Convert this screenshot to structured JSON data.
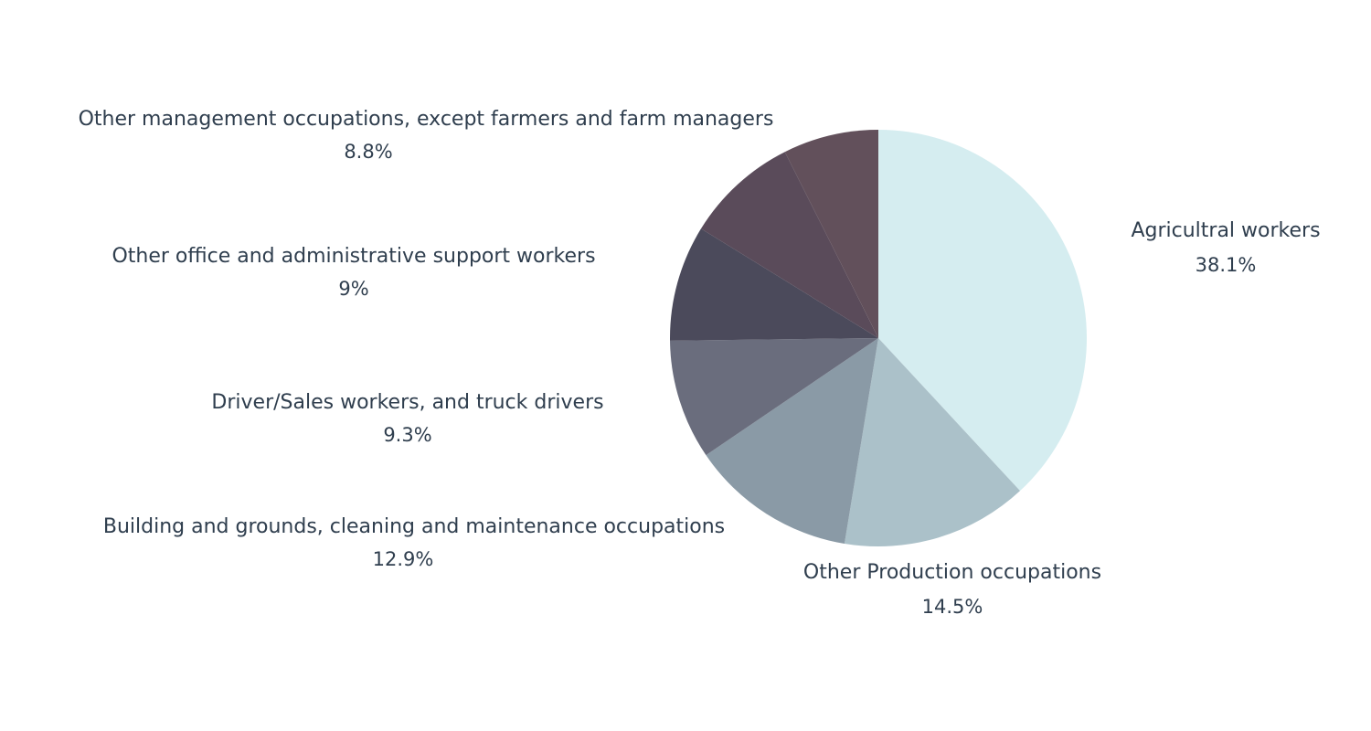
{
  "chart_data": {
    "type": "pie",
    "title": "",
    "start_angle_deg": 0,
    "direction": "clockwise",
    "slices": [
      {
        "label": "Agricultral workers",
        "value": 38.1,
        "value_label": "38.1%",
        "color": "#d5edf0"
      },
      {
        "label": "Other Production occupations",
        "value": 14.5,
        "value_label": "14.5%",
        "color": "#abc1c9"
      },
      {
        "label": "Building and grounds, cleaning and maintenance occupations",
        "value": 12.9,
        "value_label": "12.9%",
        "color": "#8a9aa6"
      },
      {
        "label": "Driver/Sales workers, and truck drivers",
        "value": 9.3,
        "value_label": "9.3%",
        "color": "#6a6d7d"
      },
      {
        "label": "Other office and administrative support workers",
        "value": 9,
        "value_label": "9%",
        "color": "#4b4a5b"
      },
      {
        "label": "Other management occupations, except farmers and farm managers",
        "value": 8.8,
        "value_label": "8.8%",
        "color": "#5a4b5a"
      },
      {
        "label": "",
        "value": 7.4,
        "value_label": "",
        "color": "#62505b"
      }
    ]
  }
}
